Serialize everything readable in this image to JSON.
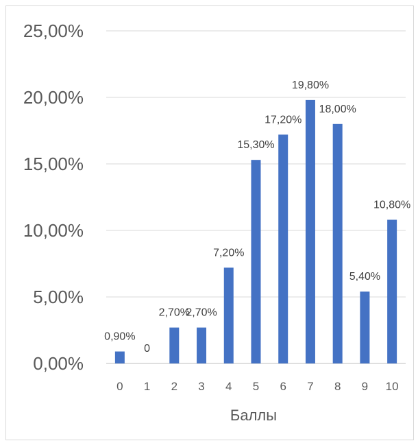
{
  "chart_data": {
    "type": "bar",
    "title": "",
    "xlabel": "Баллы",
    "ylabel": "",
    "categories": [
      "0",
      "1",
      "2",
      "3",
      "4",
      "5",
      "6",
      "7",
      "8",
      "9",
      "10"
    ],
    "values": [
      0.9,
      0,
      2.7,
      2.7,
      7.2,
      15.3,
      17.2,
      19.8,
      18.0,
      5.4,
      10.8
    ],
    "data_labels": [
      "0,90%",
      "0",
      "2,70%",
      "2,70%",
      "7,20%",
      "15,30%",
      "17,20%",
      "19,80%",
      "18,00%",
      "5,40%",
      "10,80%"
    ],
    "y_ticks": [
      "0,00%",
      "5,00%",
      "10,00%",
      "15,00%",
      "20,00%",
      "25,00%"
    ],
    "ylim": [
      0,
      25
    ],
    "grid": true,
    "legend": "none",
    "bar_color": "#4472c4"
  }
}
